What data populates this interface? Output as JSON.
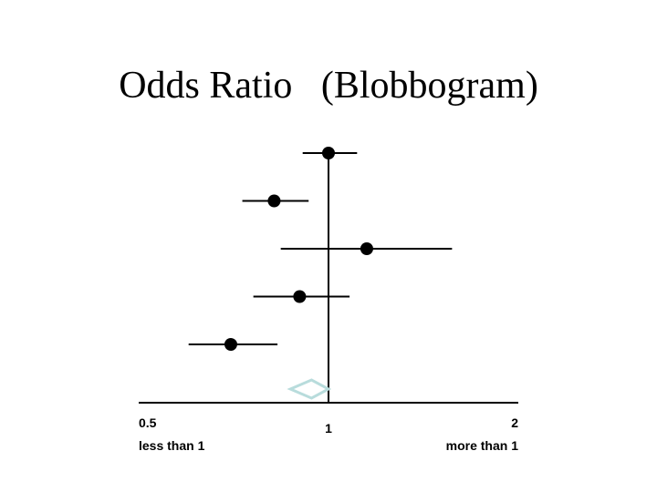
{
  "slide": {
    "title": "Odds Ratio   (Blobbogram)"
  },
  "chart_data": {
    "type": "scatter",
    "subtype": "forest-plot",
    "title": "Odds Ratio   (Blobbogram)",
    "x_scale": "log",
    "xlim": [
      0.5,
      2
    ],
    "reference_line": 1,
    "ticks": [
      {
        "value": 0.5,
        "label": "0.5",
        "sublabel": "less than 1",
        "align": "start"
      },
      {
        "value": 1,
        "label": "1",
        "sublabel": "",
        "align": "middle"
      },
      {
        "value": 2,
        "label": "2",
        "sublabel": "more than 1",
        "align": "end"
      }
    ],
    "studies": [
      {
        "estimate": 1.0,
        "ci": [
          0.91,
          1.11
        ]
      },
      {
        "estimate": 0.82,
        "ci": [
          0.73,
          0.93
        ]
      },
      {
        "estimate": 1.15,
        "ci": [
          0.84,
          1.57
        ]
      },
      {
        "estimate": 0.9,
        "ci": [
          0.76,
          1.08
        ]
      },
      {
        "estimate": 0.7,
        "ci": [
          0.6,
          0.83
        ]
      }
    ],
    "pooled": {
      "estimate": 0.94,
      "ci": [
        0.87,
        1.0
      ]
    },
    "colors": {
      "points": "#000000",
      "lines": "#000000",
      "pooled_diamond": "#b8dcdc"
    }
  }
}
